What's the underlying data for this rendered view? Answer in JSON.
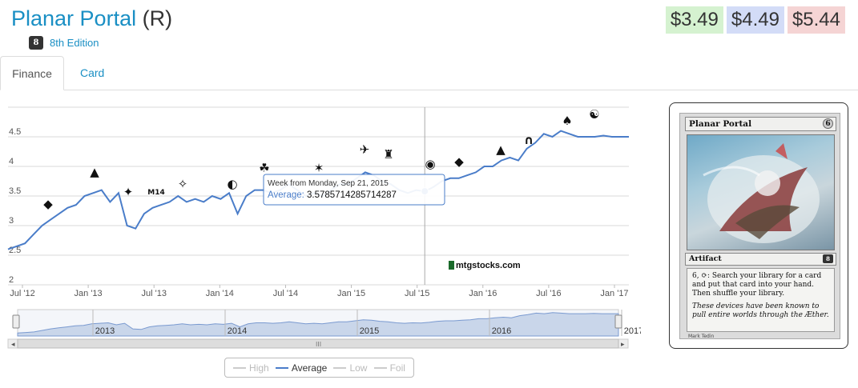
{
  "header": {
    "card_name": "Planar Portal",
    "rarity": "(R)",
    "set_icon_text": "8",
    "set_name": "8th Edition"
  },
  "prices": {
    "low": "$3.49",
    "mid": "$4.49",
    "high": "$5.44"
  },
  "tabs": [
    {
      "label": "Finance",
      "active": true
    },
    {
      "label": "Card",
      "active": false
    }
  ],
  "tooltip": {
    "header": "Week from Monday, Sep 21, 2015",
    "series_label": "Average:",
    "value": "3.5785714285714287"
  },
  "watermark": "mtgstocks.com",
  "chart_data": {
    "type": "line",
    "series": [
      {
        "name": "Average",
        "values": [
          2.6,
          2.65,
          2.7,
          2.85,
          3.0,
          3.1,
          3.2,
          3.3,
          3.35,
          3.5,
          3.55,
          3.6,
          3.4,
          3.55,
          3.0,
          2.95,
          3.2,
          3.3,
          3.35,
          3.4,
          3.5,
          3.4,
          3.45,
          3.4,
          3.5,
          3.45,
          3.55,
          3.2,
          3.5,
          3.6,
          3.6,
          3.55,
          3.6,
          3.7,
          3.6,
          3.5,
          3.55,
          3.5,
          3.6,
          3.7,
          3.7,
          3.8,
          3.9,
          3.85,
          3.75,
          3.7,
          3.6,
          3.55,
          3.6,
          3.58,
          3.65,
          3.75,
          3.8,
          3.8,
          3.85,
          3.9,
          4.0,
          4.0,
          4.1,
          4.15,
          4.1,
          4.3,
          4.4,
          4.55,
          4.5,
          4.6,
          4.55,
          4.5,
          4.5,
          4.5,
          4.52,
          4.5,
          4.5,
          4.5
        ]
      }
    ],
    "x_labels": [
      "Jul '12",
      "Jan '13",
      "Jul '13",
      "Jan '14",
      "Jul '14",
      "Jan '15",
      "Jul '15",
      "Jan '16",
      "Jul '16",
      "Jan '17"
    ],
    "y_ticks": [
      "2",
      "2.5",
      "3",
      "3.5",
      "4",
      "4.5"
    ],
    "ylim": [
      2,
      5
    ],
    "grid": true,
    "navigator_years": [
      "2013",
      "2014",
      "2015",
      "2016",
      "2017"
    ],
    "legend": [
      "High",
      "Average",
      "Low",
      "Foil"
    ],
    "legend_placement": "bottom",
    "colors": {
      "average": "#4a7dc9",
      "navigator_fill": "#c9d6ea",
      "crosshair": "#aaaaaa"
    },
    "set_markers": [
      "m14-icon",
      "set-symbol-icon"
    ]
  },
  "card": {
    "name": "Planar Portal",
    "cost": "6",
    "type": "Artifact",
    "set_symbol": "8",
    "rules_text": "6, ⟳: Search your library for a card and put that card into your hand. Then shuffle your library.",
    "flavor_text": "These devices have been known to pull entire worlds through the Æther.",
    "artist": "Mark Tedin"
  }
}
